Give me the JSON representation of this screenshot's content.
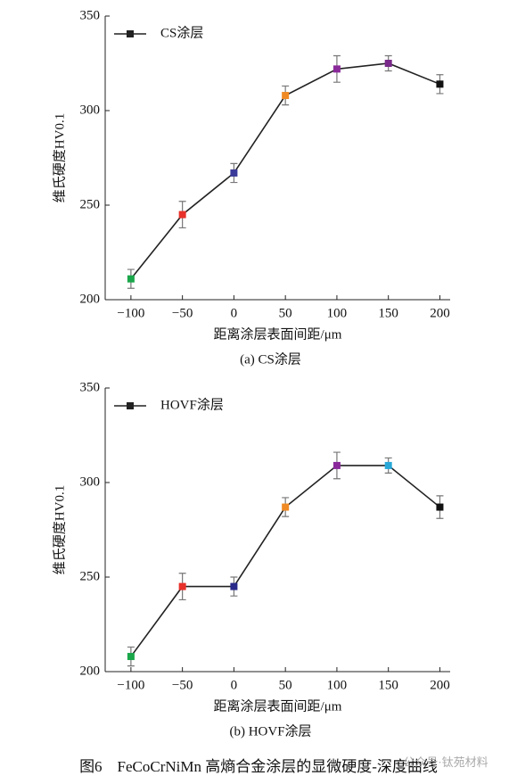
{
  "chart_data": [
    {
      "type": "line",
      "xlabel": "距离涂层表面间距/μm",
      "ylabel": "维氏硬度HV0.1",
      "caption": "(a) CS涂层",
      "x": [
        -100,
        -50,
        0,
        50,
        100,
        150,
        200
      ],
      "series": [
        {
          "name": "CS涂层",
          "color": "#222222",
          "values": [
            211,
            245,
            267,
            308,
            322,
            325,
            314
          ],
          "errors": [
            5,
            7,
            5,
            5,
            7,
            4,
            5
          ],
          "point_colors": [
            "#1aa64a",
            "#e8312a",
            "#3a3a9a",
            "#f08a24",
            "#8a2a9a",
            "#7a2a8a",
            "#111111"
          ]
        }
      ],
      "xlim": [
        -125,
        210
      ],
      "ylim": [
        200,
        350
      ],
      "xticks": [
        {
          "value": -100,
          "label": "−100"
        },
        {
          "value": -50,
          "label": "−50"
        },
        0,
        50,
        100,
        150,
        200
      ],
      "yticks": [
        200,
        250,
        300,
        350
      ],
      "legend": "upper left"
    },
    {
      "type": "line",
      "xlabel": "距离涂层表面间距/μm",
      "ylabel": "维氏硬度HV0.1",
      "caption": "(b) HOVF涂层",
      "x": [
        -100,
        -50,
        0,
        50,
        100,
        150,
        200
      ],
      "series": [
        {
          "name": "HOVF涂层",
          "color": "#222222",
          "values": [
            208,
            245,
            245,
            287,
            309,
            309,
            287
          ],
          "errors": [
            5,
            7,
            5,
            5,
            7,
            4,
            6
          ],
          "point_colors": [
            "#1aa64a",
            "#e8312a",
            "#2a2a8a",
            "#f08a24",
            "#8a2a9a",
            "#28a8d8",
            "#111111"
          ]
        }
      ],
      "xlim": [
        -125,
        210
      ],
      "ylim": [
        200,
        350
      ],
      "xticks": [
        {
          "value": -100,
          "label": "−100"
        },
        {
          "value": -50,
          "label": "−50"
        },
        0,
        50,
        100,
        150,
        200
      ],
      "yticks": [
        200,
        250,
        300,
        350
      ],
      "legend": "upper left"
    }
  ],
  "figure_caption": "图6　FeCoCrNiMn 高熵合金涂层的显微硬度-深度曲线",
  "watermark": "公众号·钛苑材料"
}
